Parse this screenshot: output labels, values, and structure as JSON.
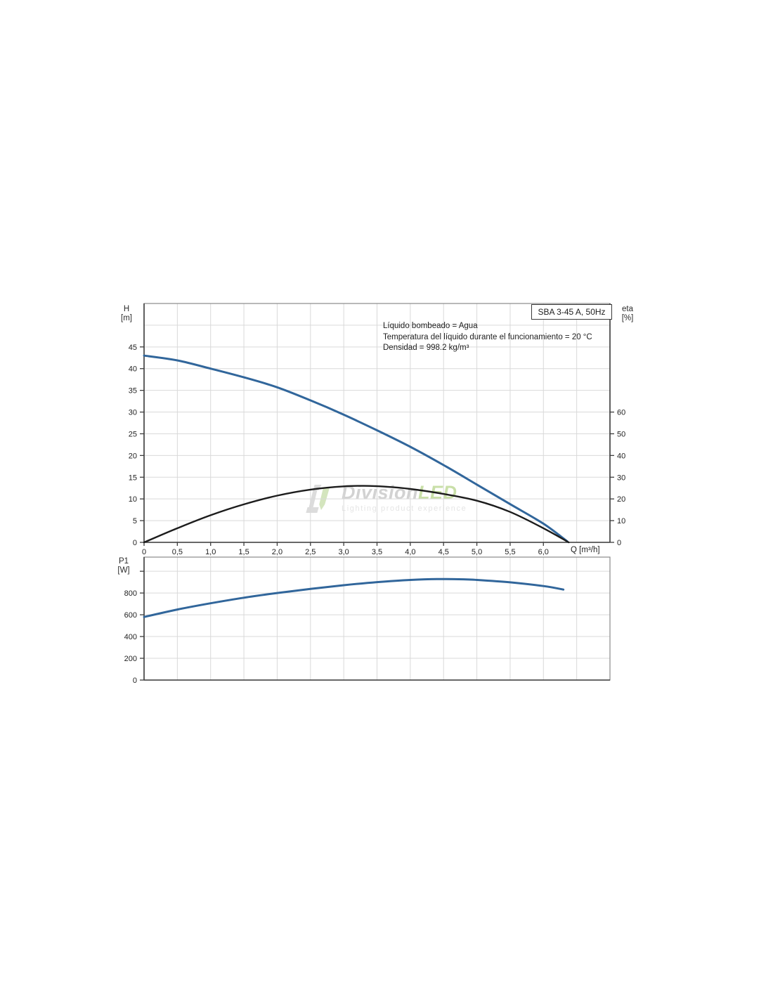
{
  "page": {
    "background": "#ffffff"
  },
  "colors": {
    "grid": "#d9d9d9",
    "frame": "#8a8a8a",
    "axis": "#3d3d3d",
    "text": "#222222",
    "curve_blue": "#31669b",
    "curve_black": "#1c1c1c",
    "watermark_grey": "#c3c3c3",
    "watermark_green": "#b7d58c",
    "watermark_sub": "#dcdcdc"
  },
  "watermark": {
    "brand_grey": "Division",
    "brand_green": "LED",
    "subtitle": "Lighting product experience",
    "logo_icon": "divisionled-brackets-logo"
  },
  "chart_data": [
    {
      "type": "line",
      "title": "SBA 3-45 A, 50Hz",
      "annotations": [
        "Líquido bombeado = Agua",
        "Temperatura del líquido durante el funcionamiento = 20 °C",
        "Densidad = 998.2 kg/m³"
      ],
      "x_axis": {
        "label": "Q [m³/h]",
        "min": 0,
        "max": 7,
        "tick_step": 0.5,
        "tick_labels": [
          "0",
          "0,5",
          "1,0",
          "1,5",
          "2,0",
          "2,5",
          "3,0",
          "3,5",
          "4,0",
          "4,5",
          "5,0",
          "5,5",
          "6,0"
        ],
        "grid": true
      },
      "y_axis_left": {
        "label": "H",
        "unit": "[m]",
        "min": 0,
        "max": 55,
        "tick_step": 5,
        "tick_labels": [
          "0",
          "5",
          "10",
          "15",
          "20",
          "25",
          "30",
          "35",
          "40",
          "45"
        ],
        "grid": true
      },
      "y_axis_right": {
        "label": "eta",
        "unit": "[%]",
        "min": 0,
        "max": 110,
        "tick_step": 10,
        "tick_labels": [
          "0",
          "10",
          "20",
          "30",
          "40",
          "50",
          "60"
        ]
      },
      "series": [
        {
          "name": "head-curve-H",
          "color": "#31669b",
          "width": 3,
          "axis": "left",
          "points": [
            [
              0,
              43
            ],
            [
              0.5,
              41.9
            ],
            [
              1,
              40
            ],
            [
              1.5,
              38
            ],
            [
              2,
              35.7
            ],
            [
              2.5,
              32.7
            ],
            [
              3,
              29.4
            ],
            [
              3.5,
              25.8
            ],
            [
              4,
              22
            ],
            [
              4.5,
              17.8
            ],
            [
              5,
              13.3
            ],
            [
              5.5,
              8.8
            ],
            [
              6,
              4.3
            ],
            [
              6.36,
              0.2
            ]
          ]
        },
        {
          "name": "efficiency-curve-eta",
          "color": "#1c1c1c",
          "width": 2.4,
          "axis": "right",
          "points": [
            [
              0,
              0
            ],
            [
              0.5,
              6.5
            ],
            [
              1,
              12.5
            ],
            [
              1.5,
              17.5
            ],
            [
              2,
              21.5
            ],
            [
              2.5,
              24.3
            ],
            [
              3,
              25.8
            ],
            [
              3.3,
              26
            ],
            [
              3.6,
              25.7
            ],
            [
              4,
              24.6
            ],
            [
              4.5,
              22.3
            ],
            [
              5,
              19.2
            ],
            [
              5.5,
              14
            ],
            [
              6,
              6.5
            ],
            [
              6.38,
              0
            ]
          ]
        }
      ]
    },
    {
      "type": "line",
      "x_axis": {
        "min": 0,
        "max": 7,
        "tick_step": 0.5,
        "grid": true
      },
      "y_axis_left": {
        "label": "P1",
        "unit": "[W]",
        "min": 0,
        "max": 1130,
        "tick_step": 200,
        "tick_labels": [
          "0",
          "200",
          "400",
          "600",
          "800"
        ],
        "extra_ticks": [
          1000
        ],
        "grid": true
      },
      "series": [
        {
          "name": "power-curve-P1",
          "color": "#31669b",
          "width": 3,
          "axis": "left",
          "points": [
            [
              0,
              580
            ],
            [
              0.5,
              648
            ],
            [
              1,
              706
            ],
            [
              1.5,
              757
            ],
            [
              2,
              800
            ],
            [
              2.5,
              838
            ],
            [
              3,
              872
            ],
            [
              3.5,
              900
            ],
            [
              4,
              920
            ],
            [
              4.4,
              928
            ],
            [
              4.8,
              926
            ],
            [
              5,
              920
            ],
            [
              5.5,
              898
            ],
            [
              6,
              864
            ],
            [
              6.3,
              832
            ]
          ]
        }
      ]
    }
  ]
}
